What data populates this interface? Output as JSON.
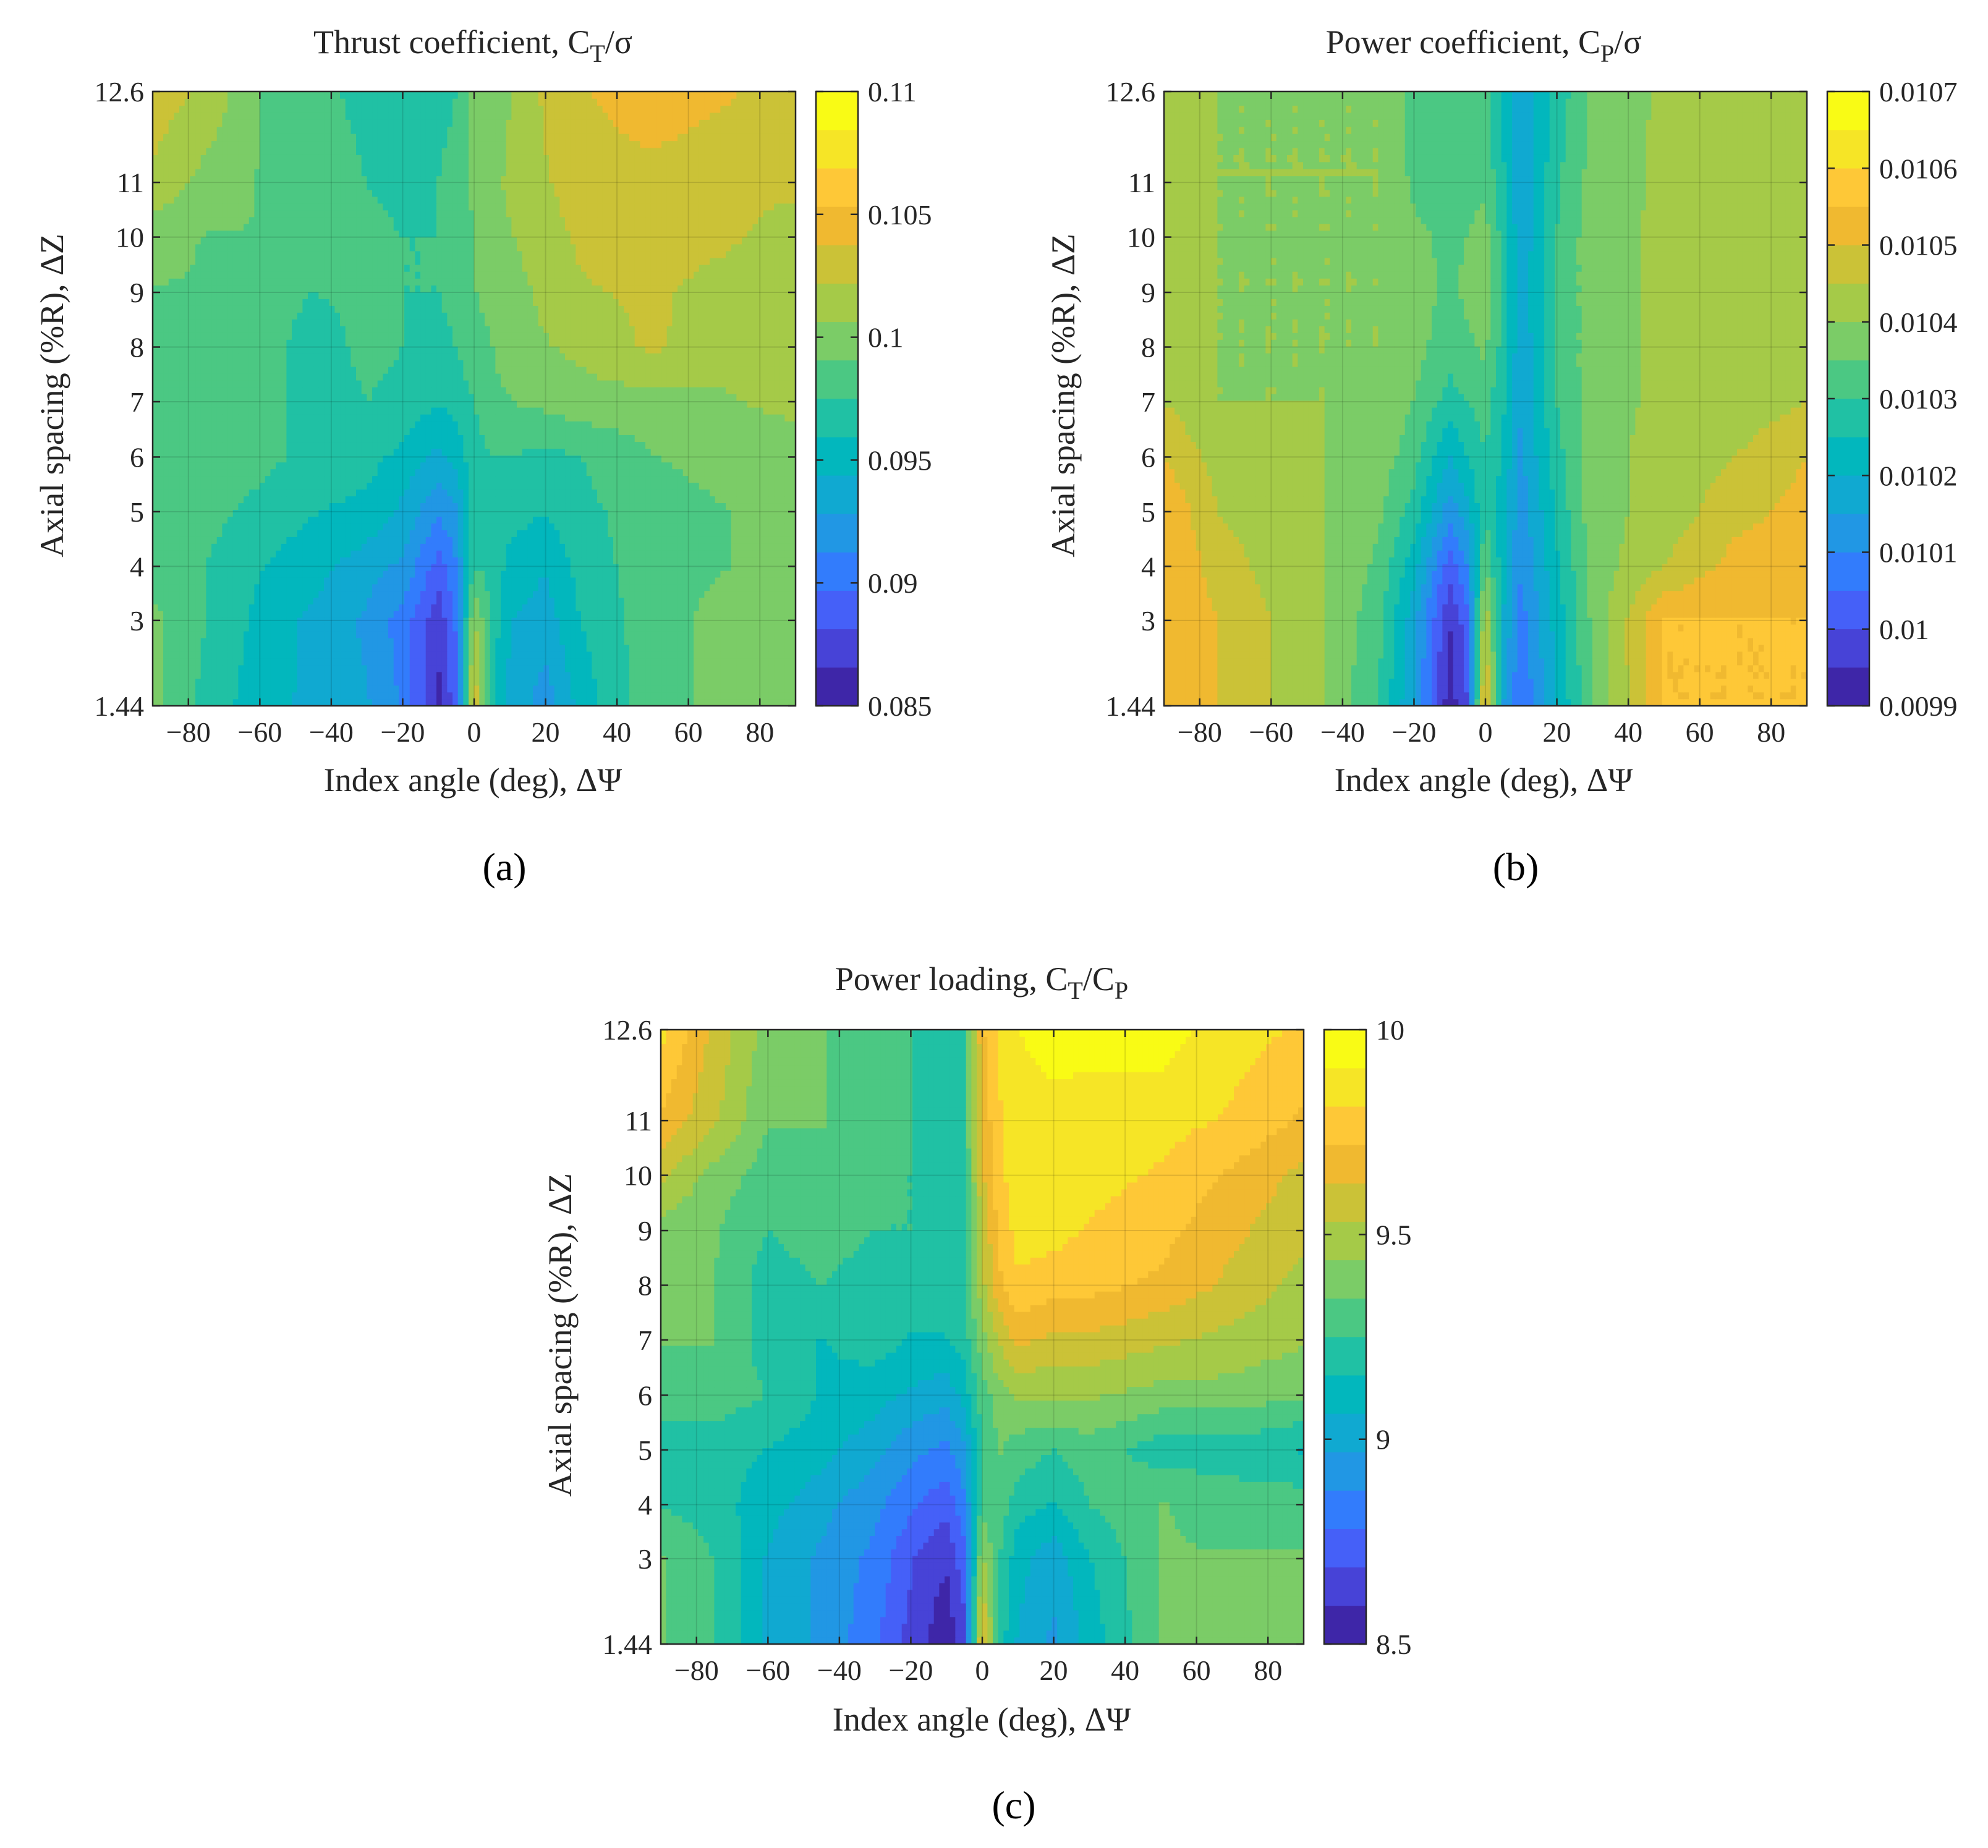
{
  "colormap": [
    "#3e26a8",
    "#4743d7",
    "#4560f8",
    "#327cfc",
    "#2197e4",
    "#10a9d1",
    "#02b7bd",
    "#20c1a4",
    "#4bc883",
    "#7bcc67",
    "#a5ca48",
    "#cbc237",
    "#f0b930",
    "#fec837",
    "#f6e526",
    "#f9fb15"
  ],
  "panels": [
    {
      "id": "a",
      "title": "Thrust coefficient, C",
      "title_sub": "T",
      "title_tail": "/σ",
      "xlabel": "Index angle (deg), ΔΨ",
      "ylabel": "Axial spacing (%R), ΔZ",
      "xticks": [
        "−80",
        "−60",
        "−40",
        "−20",
        "0",
        "20",
        "40",
        "60",
        "80"
      ],
      "xtick_values": [
        -80,
        -60,
        -40,
        -20,
        0,
        20,
        40,
        60,
        80
      ],
      "yticks": [
        "1.44",
        "3",
        "4",
        "5",
        "6",
        "7",
        "8",
        "9",
        "10",
        "11",
        "12.6"
      ],
      "ytick_values": [
        1.44,
        3,
        4,
        5,
        6,
        7,
        8,
        9,
        10,
        11,
        12.6
      ],
      "cbar_ticks": [
        "0.085",
        "0.09",
        "0.095",
        "0.1",
        "0.105",
        "0.11"
      ],
      "cbar_values": [
        0.085,
        0.09,
        0.095,
        0.1,
        0.105,
        0.11
      ],
      "caption": "(a)"
    },
    {
      "id": "b",
      "title": "Power coefficient, C",
      "title_sub": "P",
      "title_tail": "/σ",
      "xlabel": "Index angle (deg), ΔΨ",
      "ylabel": "Axial spacing (%R), ΔZ",
      "xticks": [
        "−80",
        "−60",
        "−40",
        "−20",
        "0",
        "20",
        "40",
        "60",
        "80"
      ],
      "xtick_values": [
        -80,
        -60,
        -40,
        -20,
        0,
        20,
        40,
        60,
        80
      ],
      "yticks": [
        "1.44",
        "3",
        "4",
        "5",
        "6",
        "7",
        "8",
        "9",
        "10",
        "11",
        "12.6"
      ],
      "ytick_values": [
        1.44,
        3,
        4,
        5,
        6,
        7,
        8,
        9,
        10,
        11,
        12.6
      ],
      "cbar_ticks": [
        "0.0099",
        "0.01",
        "0.0101",
        "0.0102",
        "0.0103",
        "0.0104",
        "0.0105",
        "0.0106",
        "0.0107"
      ],
      "cbar_values": [
        0.0099,
        0.01,
        0.0101,
        0.0102,
        0.0103,
        0.0104,
        0.0105,
        0.0106,
        0.0107
      ],
      "caption": "(b)"
    },
    {
      "id": "c",
      "title": "Power loading, C",
      "title_sub": "T",
      "title_tail": "/C",
      "title_sub2": "P",
      "xlabel": "Index angle (deg), ΔΨ",
      "ylabel": "Axial spacing (%R), ΔZ",
      "xticks": [
        "−80",
        "−60",
        "−40",
        "−20",
        "0",
        "20",
        "40",
        "60",
        "80"
      ],
      "xtick_values": [
        -80,
        -60,
        -40,
        -20,
        0,
        20,
        40,
        60,
        80
      ],
      "yticks": [
        "1.44",
        "3",
        "4",
        "5",
        "6",
        "7",
        "8",
        "9",
        "10",
        "11",
        "12.6"
      ],
      "ytick_values": [
        1.44,
        3,
        4,
        5,
        6,
        7,
        8,
        9,
        10,
        11,
        12.6
      ],
      "cbar_ticks": [
        "8.5",
        "9",
        "9.5",
        "10"
      ],
      "cbar_values": [
        8.5,
        9,
        9.5,
        10
      ],
      "caption": "(c)"
    }
  ],
  "chart_data": [
    {
      "type": "heatmap",
      "title": "Thrust coefficient, CT/σ",
      "xlabel": "Index angle (deg), ΔΨ",
      "ylabel": "Axial spacing (%R), ΔZ",
      "x": [
        -90,
        -75,
        -60,
        -45,
        -30,
        -20,
        -10,
        -5,
        0,
        5,
        10,
        20,
        30,
        50,
        70,
        90
      ],
      "y": [
        1.44,
        3,
        4,
        5,
        6,
        7,
        8,
        9,
        10,
        11,
        12.6
      ],
      "clim": [
        0.085,
        0.11
      ],
      "z": [
        [
          0.0995,
          0.097,
          0.095,
          0.094,
          0.093,
          0.091,
          0.086,
          0.089,
          0.104,
          0.096,
          0.094,
          0.092,
          0.095,
          0.0985,
          0.0995,
          0.0995
        ],
        [
          0.0995,
          0.0975,
          0.0955,
          0.094,
          0.0925,
          0.0905,
          0.087,
          0.09,
          0.101,
          0.097,
          0.0945,
          0.0935,
          0.096,
          0.0985,
          0.0995,
          0.0995
        ],
        [
          0.0985,
          0.0975,
          0.096,
          0.095,
          0.0935,
          0.0925,
          0.089,
          0.091,
          0.0975,
          0.097,
          0.0955,
          0.0945,
          0.0965,
          0.0985,
          0.099,
          0.0995
        ],
        [
          0.0985,
          0.098,
          0.097,
          0.096,
          0.0955,
          0.094,
          0.0915,
          0.0925,
          0.097,
          0.097,
          0.0965,
          0.096,
          0.097,
          0.0985,
          0.099,
          0.0995
        ],
        [
          0.0985,
          0.0985,
          0.098,
          0.097,
          0.0965,
          0.0955,
          0.094,
          0.095,
          0.097,
          0.0975,
          0.0975,
          0.097,
          0.0975,
          0.099,
          0.0995,
          0.1
        ],
        [
          0.099,
          0.099,
          0.0985,
          0.0965,
          0.0975,
          0.097,
          0.096,
          0.0965,
          0.0975,
          0.0985,
          0.099,
          0.0995,
          0.1,
          0.1,
          0.1005,
          0.101
        ],
        [
          0.099,
          0.099,
          0.0985,
          0.0965,
          0.098,
          0.0975,
          0.097,
          0.0975,
          0.0985,
          0.099,
          0.1,
          0.1005,
          0.101,
          0.1025,
          0.101,
          0.101
        ],
        [
          0.099,
          0.099,
          0.0985,
          0.0975,
          0.098,
          0.0975,
          0.0975,
          0.098,
          0.099,
          0.0995,
          0.1,
          0.101,
          0.102,
          0.1025,
          0.1015,
          0.101
        ],
        [
          0.0995,
          0.099,
          0.099,
          0.0985,
          0.098,
          0.0975,
          0.0975,
          0.098,
          0.099,
          0.1,
          0.1005,
          0.1015,
          0.1025,
          0.103,
          0.1025,
          0.1015
        ],
        [
          0.102,
          0.1,
          0.099,
          0.0985,
          0.0975,
          0.097,
          0.0975,
          0.098,
          0.0995,
          0.1,
          0.101,
          0.102,
          0.103,
          0.103,
          0.1025,
          0.1025
        ],
        [
          0.103,
          0.102,
          0.099,
          0.098,
          0.097,
          0.0965,
          0.097,
          0.0975,
          0.0995,
          0.1,
          0.1005,
          0.1025,
          0.1035,
          0.105,
          0.104,
          0.103
        ]
      ]
    },
    {
      "type": "heatmap",
      "title": "Power coefficient, CP/σ",
      "xlabel": "Index angle (deg), ΔΨ",
      "ylabel": "Axial spacing (%R), ΔZ",
      "x": [
        -90,
        -75,
        -60,
        -45,
        -30,
        -20,
        -10,
        -5,
        0,
        5,
        10,
        20,
        30,
        50,
        70,
        90
      ],
      "y": [
        1.44,
        3,
        4,
        5,
        6,
        7,
        8,
        9,
        10,
        11,
        12.6
      ],
      "clim": [
        0.0099,
        0.0107
      ],
      "z": [
        [
          0.01055,
          0.0105,
          0.01045,
          0.0104,
          0.0103,
          0.01015,
          0.00992,
          0.01,
          0.01055,
          0.01015,
          0.01005,
          0.0102,
          0.01035,
          0.01055,
          0.01055,
          0.01055
        ],
        [
          0.01055,
          0.0105,
          0.01045,
          0.0104,
          0.01032,
          0.01017,
          0.00995,
          0.01003,
          0.01045,
          0.0102,
          0.01008,
          0.01022,
          0.01036,
          0.01055,
          0.01055,
          0.01055
        ],
        [
          0.01055,
          0.01048,
          0.01043,
          0.0104,
          0.01034,
          0.01022,
          0.01002,
          0.0101,
          0.01035,
          0.01022,
          0.0101,
          0.01024,
          0.01037,
          0.01045,
          0.01052,
          0.01055
        ],
        [
          0.01055,
          0.01045,
          0.01042,
          0.0104,
          0.01036,
          0.01028,
          0.01012,
          0.01018,
          0.0103,
          0.01022,
          0.01012,
          0.01026,
          0.01038,
          0.01042,
          0.01048,
          0.01052
        ],
        [
          0.0105,
          0.01043,
          0.01042,
          0.0104,
          0.01038,
          0.01032,
          0.0102,
          0.01025,
          0.0103,
          0.01024,
          0.01014,
          0.01028,
          0.01038,
          0.01042,
          0.01045,
          0.0105
        ],
        [
          0.01045,
          0.0104,
          0.0104,
          0.0104,
          0.01039,
          0.01035,
          0.01028,
          0.0103,
          0.01032,
          0.01026,
          0.01015,
          0.0103,
          0.01038,
          0.01041,
          0.01042,
          0.01045
        ],
        [
          0.01042,
          0.0104,
          0.0104,
          0.0104,
          0.0104,
          0.01037,
          0.01032,
          0.01034,
          0.01036,
          0.01028,
          0.01016,
          0.0103,
          0.01038,
          0.01041,
          0.01041,
          0.01042
        ],
        [
          0.01041,
          0.0104,
          0.0104,
          0.0104,
          0.0104,
          0.01037,
          0.01034,
          0.01036,
          0.01038,
          0.01029,
          0.01017,
          0.0103,
          0.01038,
          0.01041,
          0.01041,
          0.01041
        ],
        [
          0.01041,
          0.0104,
          0.0104,
          0.0104,
          0.0104,
          0.01036,
          0.01034,
          0.01035,
          0.01037,
          0.01028,
          0.01016,
          0.0103,
          0.01038,
          0.01041,
          0.01041,
          0.01041
        ],
        [
          0.01041,
          0.0104,
          0.0104,
          0.0104,
          0.0104,
          0.01034,
          0.01033,
          0.01033,
          0.01034,
          0.01026,
          0.01016,
          0.01029,
          0.01037,
          0.01041,
          0.01041,
          0.01041
        ],
        [
          0.01041,
          0.0104,
          0.0104,
          0.0104,
          0.0104,
          0.01033,
          0.01032,
          0.01031,
          0.01031,
          0.01024,
          0.01015,
          0.01027,
          0.01036,
          0.01041,
          0.01041,
          0.01041
        ]
      ]
    },
    {
      "type": "heatmap",
      "title": "Power loading, CT/CP",
      "xlabel": "Index angle (deg), ΔΨ",
      "ylabel": "Axial spacing (%R), ΔZ",
      "x": [
        -90,
        -75,
        -60,
        -45,
        -30,
        -20,
        -10,
        -5,
        0,
        5,
        10,
        20,
        30,
        50,
        70,
        90
      ],
      "y": [
        1.44,
        3,
        4,
        5,
        6,
        7,
        8,
        9,
        10,
        11,
        12.6
      ],
      "clim": [
        8.5,
        10
      ],
      "z": [
        [
          9.35,
          9.25,
          9.05,
          8.95,
          8.8,
          8.65,
          8.52,
          8.65,
          9.7,
          9.2,
          9.05,
          8.95,
          9.1,
          9.35,
          9.35,
          9.35
        ],
        [
          9.35,
          9.25,
          9.05,
          8.95,
          8.85,
          8.7,
          8.6,
          8.75,
          9.45,
          9.25,
          9.1,
          9.0,
          9.15,
          9.35,
          9.35,
          9.35
        ],
        [
          9.25,
          9.2,
          9.1,
          9.0,
          8.9,
          8.8,
          8.72,
          8.85,
          9.3,
          9.3,
          9.2,
          9.15,
          9.25,
          9.35,
          9.3,
          9.3
        ],
        [
          9.2,
          9.2,
          9.15,
          9.1,
          9.0,
          8.9,
          8.85,
          8.95,
          9.25,
          9.35,
          9.3,
          9.25,
          9.3,
          9.2,
          9.2,
          9.15
        ],
        [
          9.3,
          9.3,
          9.25,
          9.15,
          9.1,
          9.05,
          9.0,
          9.1,
          9.3,
          9.4,
          9.45,
          9.45,
          9.45,
          9.4,
          9.4,
          9.35
        ],
        [
          9.35,
          9.35,
          9.2,
          9.15,
          9.2,
          9.15,
          9.15,
          9.2,
          9.4,
          9.55,
          9.65,
          9.6,
          9.6,
          9.55,
          9.5,
          9.45
        ],
        [
          9.35,
          9.35,
          9.2,
          9.25,
          9.2,
          9.2,
          9.2,
          9.25,
          9.5,
          9.7,
          9.8,
          9.75,
          9.75,
          9.7,
          9.6,
          9.5
        ],
        [
          9.4,
          9.35,
          9.25,
          9.3,
          9.25,
          9.25,
          9.2,
          9.25,
          9.55,
          9.75,
          9.85,
          9.85,
          9.8,
          9.75,
          9.65,
          9.55
        ],
        [
          9.55,
          9.4,
          9.3,
          9.3,
          9.25,
          9.25,
          9.2,
          9.25,
          9.6,
          9.8,
          9.85,
          9.85,
          9.85,
          9.8,
          9.7,
          9.6
        ],
        [
          9.7,
          9.55,
          9.35,
          9.35,
          9.3,
          9.25,
          9.2,
          9.25,
          9.65,
          9.8,
          9.85,
          9.85,
          9.85,
          9.85,
          9.8,
          9.7
        ],
        [
          9.85,
          9.6,
          9.4,
          9.35,
          9.3,
          9.25,
          9.2,
          9.25,
          9.7,
          9.85,
          9.9,
          9.98,
          9.95,
          9.95,
          9.85,
          9.8
        ]
      ]
    }
  ]
}
